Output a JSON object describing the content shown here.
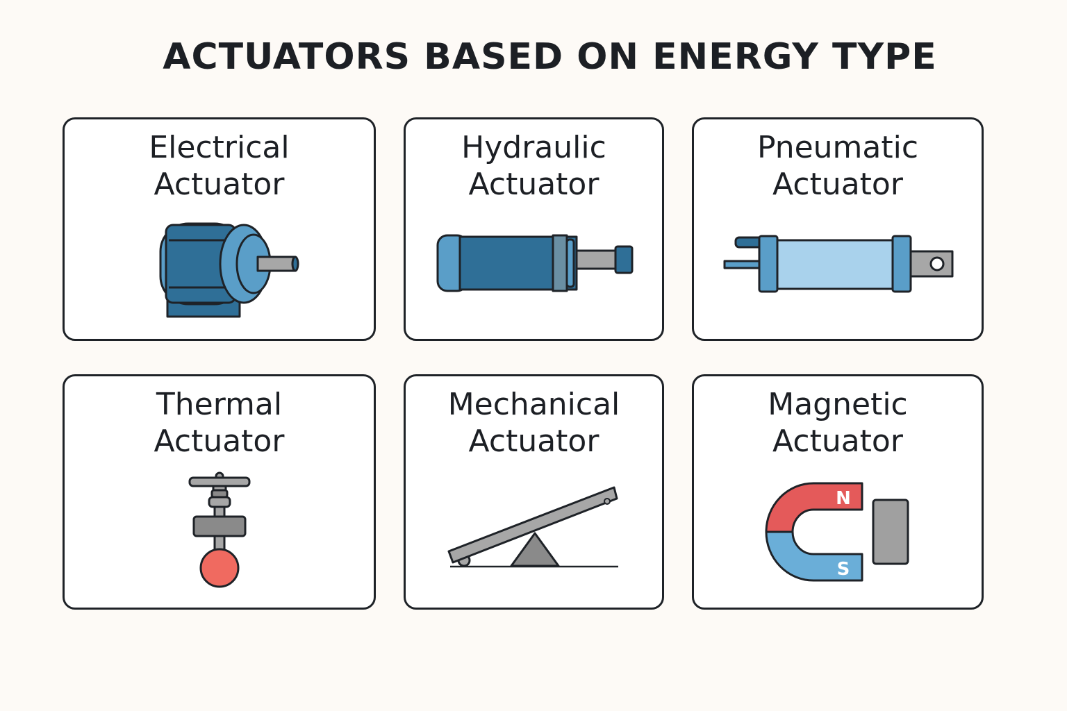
{
  "title": "ACTUATORS BASED ON ENERGY TYPE",
  "cards": [
    {
      "id": "electrical",
      "line1": "Electrical",
      "line2": "Actuator",
      "icon": "electric-motor-icon"
    },
    {
      "id": "hydraulic",
      "line1": "Hydraulic",
      "line2": "Actuator",
      "icon": "hydraulic-cylinder-icon"
    },
    {
      "id": "pneumatic",
      "line1": "Pneumatic",
      "line2": "Actuator",
      "icon": "pneumatic-cylinder-icon"
    },
    {
      "id": "thermal",
      "line1": "Thermal",
      "line2": "Actuator",
      "icon": "thermal-valve-icon"
    },
    {
      "id": "mechanical",
      "line1": "Mechanical",
      "line2": "Actuator",
      "icon": "lever-icon"
    },
    {
      "id": "magnetic",
      "line1": "Magnetic",
      "line2": "Actuator",
      "icon": "horseshoe-magnet-icon"
    }
  ],
  "magnet": {
    "north_label": "N",
    "south_label": "S"
  },
  "colors": {
    "background": "#fdfaf6",
    "outline": "#1e2227",
    "dark_blue": "#2f6f97",
    "mid_blue": "#5a9ec8",
    "light_blue": "#a9d2ec",
    "gray": "#a7a7a7",
    "dark_gray": "#8a8a8a",
    "red": "#e45a5a",
    "ball_red": "#f06a60"
  }
}
